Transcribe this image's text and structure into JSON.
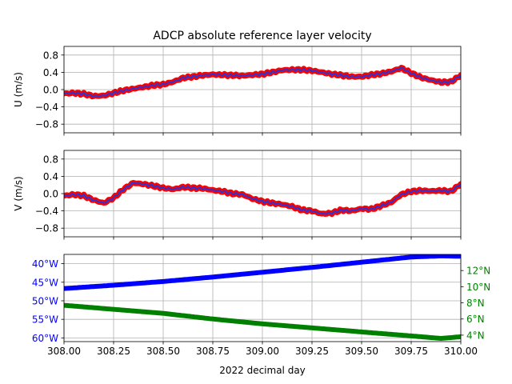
{
  "title": "ADCP absolute reference layer velocity",
  "xlabel": "2022 decimal day",
  "colors": {
    "outer": "#ff0000",
    "inner": "#3333cc",
    "lon": "#0000ff",
    "lat": "#008000",
    "grid": "#b0b0b0"
  },
  "chart_data": [
    {
      "type": "line",
      "ylabel": "U (m/s)",
      "xlim": [
        308.0,
        310.0
      ],
      "ylim": [
        -1.0,
        1.0
      ],
      "yticks": [
        -0.8,
        -0.4,
        0.0,
        0.4,
        0.8
      ],
      "ytick_labels": [
        "−0.8",
        "−0.4",
        "0.0",
        "0.4",
        "0.8"
      ],
      "grid": true,
      "series": [
        {
          "x": [
            308.0,
            308.05,
            308.1,
            308.15,
            308.2,
            308.25,
            308.3,
            308.35,
            308.4,
            308.45,
            308.5,
            308.55,
            308.6,
            308.65,
            308.7,
            308.75,
            308.8,
            308.85,
            308.9,
            308.95,
            309.0,
            309.05,
            309.1,
            309.15,
            309.2,
            309.25,
            309.3,
            309.35,
            309.4,
            309.45,
            309.5,
            309.55,
            309.6,
            309.65,
            309.7,
            309.75,
            309.8,
            309.85,
            309.9,
            309.95,
            310.0
          ],
          "values": [
            -0.09,
            -0.08,
            -0.1,
            -0.15,
            -0.14,
            -0.08,
            -0.02,
            0.02,
            0.06,
            0.1,
            0.12,
            0.18,
            0.27,
            0.3,
            0.33,
            0.35,
            0.34,
            0.33,
            0.32,
            0.34,
            0.36,
            0.4,
            0.45,
            0.46,
            0.46,
            0.44,
            0.4,
            0.36,
            0.33,
            0.3,
            0.3,
            0.34,
            0.37,
            0.42,
            0.5,
            0.38,
            0.28,
            0.22,
            0.17,
            0.18,
            0.33
          ]
        }
      ]
    },
    {
      "type": "line",
      "ylabel": "V (m/s)",
      "xlim": [
        308.0,
        310.0
      ],
      "ylim": [
        -1.0,
        1.0
      ],
      "yticks": [
        -0.8,
        -0.4,
        0.0,
        0.4,
        0.8
      ],
      "ytick_labels": [
        "−0.8",
        "−0.4",
        "0.0",
        "0.4",
        "0.8"
      ],
      "grid": true,
      "series": [
        {
          "x": [
            308.0,
            308.05,
            308.1,
            308.15,
            308.2,
            308.25,
            308.3,
            308.35,
            308.4,
            308.45,
            308.5,
            308.55,
            308.6,
            308.65,
            308.7,
            308.75,
            308.8,
            308.85,
            308.9,
            308.95,
            309.0,
            309.05,
            309.1,
            309.15,
            309.2,
            309.25,
            309.3,
            309.35,
            309.4,
            309.45,
            309.5,
            309.55,
            309.6,
            309.65,
            309.7,
            309.75,
            309.8,
            309.85,
            309.9,
            309.95,
            310.0
          ],
          "values": [
            -0.05,
            -0.02,
            -0.05,
            -0.15,
            -0.22,
            -0.1,
            0.1,
            0.25,
            0.22,
            0.18,
            0.13,
            0.1,
            0.15,
            0.13,
            0.12,
            0.08,
            0.05,
            0.0,
            -0.02,
            -0.12,
            -0.18,
            -0.22,
            -0.25,
            -0.3,
            -0.38,
            -0.4,
            -0.47,
            -0.45,
            -0.38,
            -0.4,
            -0.35,
            -0.36,
            -0.28,
            -0.2,
            -0.02,
            0.05,
            0.07,
            0.06,
            0.07,
            0.05,
            0.22
          ]
        }
      ]
    },
    {
      "type": "line",
      "xlim": [
        308.0,
        310.0
      ],
      "xticks": [
        308.0,
        308.25,
        308.5,
        308.75,
        309.0,
        309.25,
        309.5,
        309.75,
        310.0
      ],
      "xtick_labels": [
        "308.00",
        "308.25",
        "308.50",
        "308.75",
        "309.00",
        "309.25",
        "309.50",
        "309.75",
        "310.00"
      ],
      "grid": true,
      "left_axis": {
        "ylim": [
          -61,
          -37.5
        ],
        "yticks": [
          -60,
          -55,
          -50,
          -45,
          -40
        ],
        "ytick_labels": [
          "60°W",
          "55°W",
          "50°W",
          "45°W",
          "40°W"
        ],
        "color": "#0000ff"
      },
      "right_axis": {
        "ylim": [
          3.2,
          14.0
        ],
        "yticks": [
          4,
          6,
          8,
          10,
          12
        ],
        "ytick_labels": [
          "4°N",
          "6°N",
          "8°N",
          "10°N",
          "12°N"
        ],
        "color": "#008000"
      },
      "series": [
        {
          "axis": "left",
          "color": "#0000ff",
          "x": [
            308.0,
            308.25,
            308.5,
            308.75,
            309.0,
            309.25,
            309.5,
            309.75,
            309.9,
            310.0
          ],
          "values": [
            -46.7,
            -45.8,
            -44.8,
            -43.6,
            -42.3,
            -41.0,
            -39.6,
            -38.2,
            -37.9,
            -38.0
          ]
        },
        {
          "axis": "right",
          "color": "#008000",
          "x": [
            308.0,
            308.25,
            308.5,
            308.75,
            309.0,
            309.25,
            309.5,
            309.75,
            309.9,
            310.0
          ],
          "values": [
            7.7,
            7.2,
            6.7,
            6.0,
            5.4,
            4.9,
            4.4,
            3.9,
            3.6,
            3.8
          ]
        }
      ]
    }
  ]
}
